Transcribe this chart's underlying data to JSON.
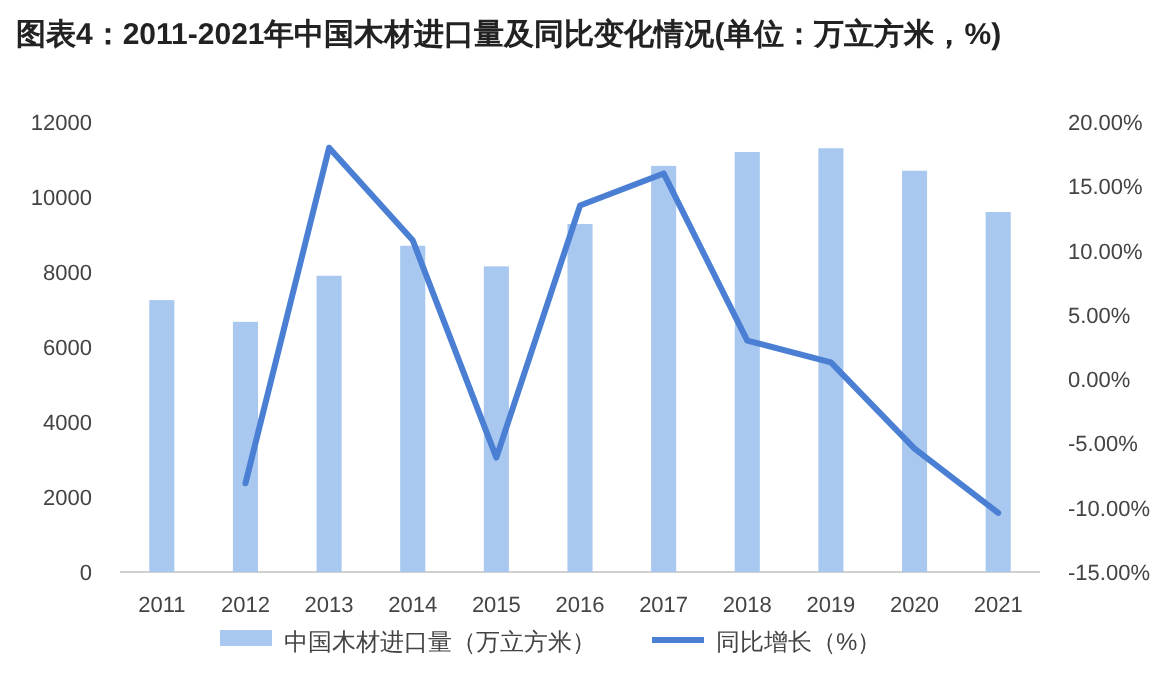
{
  "chart_data": {
    "type": "bar",
    "title": "图表4：2011-2021年中国木材进口量及同比变化情况(单位：万立方米，%)",
    "categories": [
      "2011",
      "2012",
      "2013",
      "2014",
      "2015",
      "2016",
      "2017",
      "2018",
      "2019",
      "2020",
      "2021"
    ],
    "series": [
      {
        "name": "中国木材进口量（万立方米）",
        "color": "#a9c8f0",
        "values": [
          7250,
          6670,
          7900,
          8700,
          8150,
          9280,
          10830,
          11200,
          11300,
          10700,
          9600
        ]
      },
      {
        "name": "同比增长（%）",
        "type": "line",
        "axis": "y2",
        "color": "#4a7fd4",
        "values": [
          null,
          -8.1,
          18,
          10.8,
          -6.1,
          13.5,
          16,
          3,
          1.3,
          -5.4,
          -10.4
        ]
      }
    ],
    "ylim": [
      0,
      12000
    ],
    "yticks": [
      0,
      2000,
      4000,
      6000,
      8000,
      10000,
      12000
    ],
    "y2lim": [
      -15,
      20
    ],
    "y2ticks": [
      {
        "value": -15,
        "label": "-15.00%"
      },
      {
        "value": -10,
        "label": "-10.00%"
      },
      {
        "value": -5,
        "label": "-5.00%"
      },
      {
        "value": 0,
        "label": "0.00%"
      },
      {
        "value": 5,
        "label": "5.00%"
      },
      {
        "value": 10,
        "label": "10.00%"
      },
      {
        "value": 15,
        "label": "15.00%"
      },
      {
        "value": 20,
        "label": "20.00%"
      }
    ],
    "grid": false,
    "legend": "bottom",
    "marker": "none",
    "line_style": "solid"
  }
}
